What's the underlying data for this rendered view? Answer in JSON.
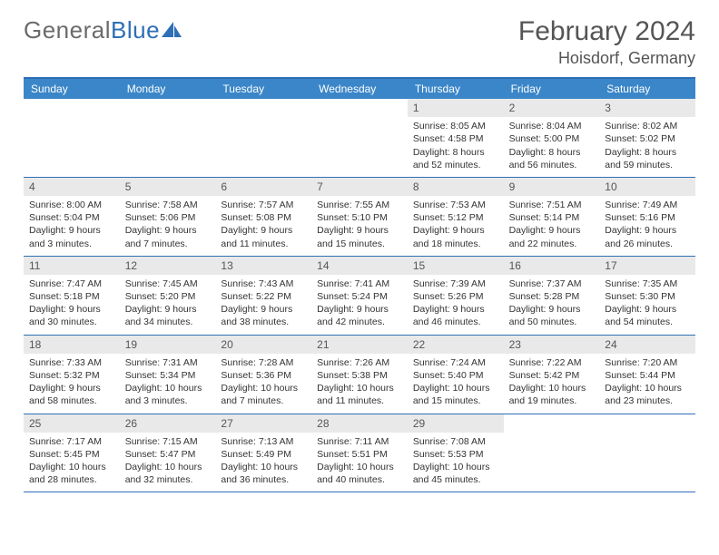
{
  "logo": {
    "part1": "General",
    "part2": "Blue"
  },
  "title": "February 2024",
  "location": "Hoisdorf, Germany",
  "colors": {
    "header_bar": "#3b86c8",
    "rule": "#2e6fb5",
    "daynum_bg": "#e9e9e9",
    "text": "#333333",
    "header_text": "#ffffff",
    "logo_gray": "#6b6b6b",
    "logo_blue": "#2e6fb5"
  },
  "weekdays": [
    "Sunday",
    "Monday",
    "Tuesday",
    "Wednesday",
    "Thursday",
    "Friday",
    "Saturday"
  ],
  "weeks": [
    [
      null,
      null,
      null,
      null,
      {
        "n": "1",
        "sr": "Sunrise: 8:05 AM",
        "ss": "Sunset: 4:58 PM",
        "d1": "Daylight: 8 hours",
        "d2": "and 52 minutes."
      },
      {
        "n": "2",
        "sr": "Sunrise: 8:04 AM",
        "ss": "Sunset: 5:00 PM",
        "d1": "Daylight: 8 hours",
        "d2": "and 56 minutes."
      },
      {
        "n": "3",
        "sr": "Sunrise: 8:02 AM",
        "ss": "Sunset: 5:02 PM",
        "d1": "Daylight: 8 hours",
        "d2": "and 59 minutes."
      }
    ],
    [
      {
        "n": "4",
        "sr": "Sunrise: 8:00 AM",
        "ss": "Sunset: 5:04 PM",
        "d1": "Daylight: 9 hours",
        "d2": "and 3 minutes."
      },
      {
        "n": "5",
        "sr": "Sunrise: 7:58 AM",
        "ss": "Sunset: 5:06 PM",
        "d1": "Daylight: 9 hours",
        "d2": "and 7 minutes."
      },
      {
        "n": "6",
        "sr": "Sunrise: 7:57 AM",
        "ss": "Sunset: 5:08 PM",
        "d1": "Daylight: 9 hours",
        "d2": "and 11 minutes."
      },
      {
        "n": "7",
        "sr": "Sunrise: 7:55 AM",
        "ss": "Sunset: 5:10 PM",
        "d1": "Daylight: 9 hours",
        "d2": "and 15 minutes."
      },
      {
        "n": "8",
        "sr": "Sunrise: 7:53 AM",
        "ss": "Sunset: 5:12 PM",
        "d1": "Daylight: 9 hours",
        "d2": "and 18 minutes."
      },
      {
        "n": "9",
        "sr": "Sunrise: 7:51 AM",
        "ss": "Sunset: 5:14 PM",
        "d1": "Daylight: 9 hours",
        "d2": "and 22 minutes."
      },
      {
        "n": "10",
        "sr": "Sunrise: 7:49 AM",
        "ss": "Sunset: 5:16 PM",
        "d1": "Daylight: 9 hours",
        "d2": "and 26 minutes."
      }
    ],
    [
      {
        "n": "11",
        "sr": "Sunrise: 7:47 AM",
        "ss": "Sunset: 5:18 PM",
        "d1": "Daylight: 9 hours",
        "d2": "and 30 minutes."
      },
      {
        "n": "12",
        "sr": "Sunrise: 7:45 AM",
        "ss": "Sunset: 5:20 PM",
        "d1": "Daylight: 9 hours",
        "d2": "and 34 minutes."
      },
      {
        "n": "13",
        "sr": "Sunrise: 7:43 AM",
        "ss": "Sunset: 5:22 PM",
        "d1": "Daylight: 9 hours",
        "d2": "and 38 minutes."
      },
      {
        "n": "14",
        "sr": "Sunrise: 7:41 AM",
        "ss": "Sunset: 5:24 PM",
        "d1": "Daylight: 9 hours",
        "d2": "and 42 minutes."
      },
      {
        "n": "15",
        "sr": "Sunrise: 7:39 AM",
        "ss": "Sunset: 5:26 PM",
        "d1": "Daylight: 9 hours",
        "d2": "and 46 minutes."
      },
      {
        "n": "16",
        "sr": "Sunrise: 7:37 AM",
        "ss": "Sunset: 5:28 PM",
        "d1": "Daylight: 9 hours",
        "d2": "and 50 minutes."
      },
      {
        "n": "17",
        "sr": "Sunrise: 7:35 AM",
        "ss": "Sunset: 5:30 PM",
        "d1": "Daylight: 9 hours",
        "d2": "and 54 minutes."
      }
    ],
    [
      {
        "n": "18",
        "sr": "Sunrise: 7:33 AM",
        "ss": "Sunset: 5:32 PM",
        "d1": "Daylight: 9 hours",
        "d2": "and 58 minutes."
      },
      {
        "n": "19",
        "sr": "Sunrise: 7:31 AM",
        "ss": "Sunset: 5:34 PM",
        "d1": "Daylight: 10 hours",
        "d2": "and 3 minutes."
      },
      {
        "n": "20",
        "sr": "Sunrise: 7:28 AM",
        "ss": "Sunset: 5:36 PM",
        "d1": "Daylight: 10 hours",
        "d2": "and 7 minutes."
      },
      {
        "n": "21",
        "sr": "Sunrise: 7:26 AM",
        "ss": "Sunset: 5:38 PM",
        "d1": "Daylight: 10 hours",
        "d2": "and 11 minutes."
      },
      {
        "n": "22",
        "sr": "Sunrise: 7:24 AM",
        "ss": "Sunset: 5:40 PM",
        "d1": "Daylight: 10 hours",
        "d2": "and 15 minutes."
      },
      {
        "n": "23",
        "sr": "Sunrise: 7:22 AM",
        "ss": "Sunset: 5:42 PM",
        "d1": "Daylight: 10 hours",
        "d2": "and 19 minutes."
      },
      {
        "n": "24",
        "sr": "Sunrise: 7:20 AM",
        "ss": "Sunset: 5:44 PM",
        "d1": "Daylight: 10 hours",
        "d2": "and 23 minutes."
      }
    ],
    [
      {
        "n": "25",
        "sr": "Sunrise: 7:17 AM",
        "ss": "Sunset: 5:45 PM",
        "d1": "Daylight: 10 hours",
        "d2": "and 28 minutes."
      },
      {
        "n": "26",
        "sr": "Sunrise: 7:15 AM",
        "ss": "Sunset: 5:47 PM",
        "d1": "Daylight: 10 hours",
        "d2": "and 32 minutes."
      },
      {
        "n": "27",
        "sr": "Sunrise: 7:13 AM",
        "ss": "Sunset: 5:49 PM",
        "d1": "Daylight: 10 hours",
        "d2": "and 36 minutes."
      },
      {
        "n": "28",
        "sr": "Sunrise: 7:11 AM",
        "ss": "Sunset: 5:51 PM",
        "d1": "Daylight: 10 hours",
        "d2": "and 40 minutes."
      },
      {
        "n": "29",
        "sr": "Sunrise: 7:08 AM",
        "ss": "Sunset: 5:53 PM",
        "d1": "Daylight: 10 hours",
        "d2": "and 45 minutes."
      },
      null,
      null
    ]
  ]
}
